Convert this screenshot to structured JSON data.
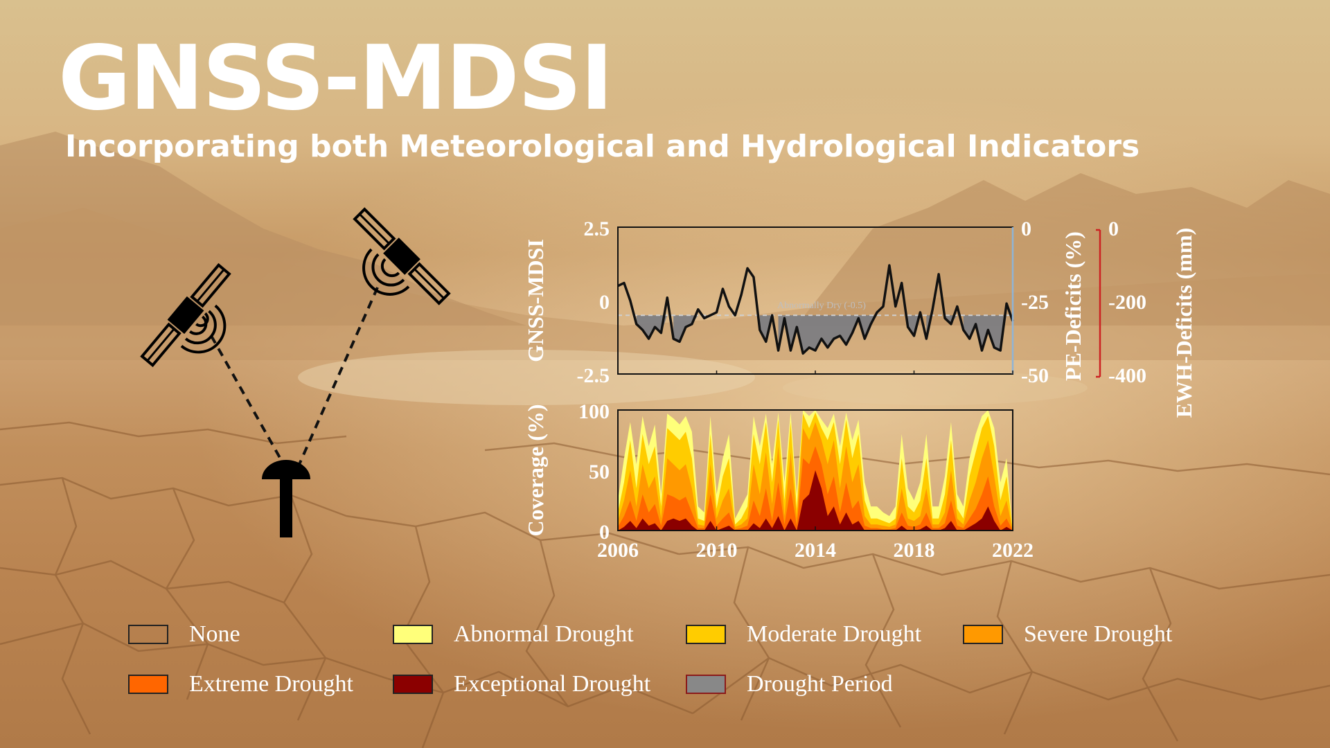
{
  "title": "GNSS-MDSI",
  "subtitle": "Incorporating both Meteorological and Hydrological Indicators",
  "chart_data": [
    {
      "type": "line",
      "ylabel": "GNSS-MDSI",
      "ylim": [
        -2.5,
        2.5
      ],
      "yticks": [
        "2.5",
        "0",
        "-2.5"
      ],
      "xlim": [
        2006,
        2022
      ],
      "threshold": {
        "value": -0.5,
        "label": "Abnormally Dry (-0.5)"
      },
      "right_axes": [
        {
          "label": "PE-Deficits (%)",
          "ticks": [
            "0",
            "-25",
            "-50"
          ],
          "color": "#8fb4d6"
        },
        {
          "label": "EWH-Deficits (mm)",
          "ticks": [
            "0",
            "-200",
            "-400"
          ],
          "color": "#cc2222"
        }
      ],
      "series": [
        {
          "x": [
            2006.0,
            2006.25,
            2006.5,
            2006.75,
            2007.0,
            2007.25,
            2007.5,
            2007.75,
            2008.0,
            2008.25,
            2008.5,
            2008.75,
            2009.0,
            2009.25,
            2009.5,
            2009.75,
            2010.0,
            2010.25,
            2010.5,
            2010.75,
            2011.0,
            2011.25,
            2011.5,
            2011.75,
            2012.0,
            2012.25,
            2012.5,
            2012.75,
            2013.0,
            2013.25,
            2013.5,
            2013.75,
            2014.0,
            2014.25,
            2014.5,
            2014.75,
            2015.0,
            2015.25,
            2015.5,
            2015.75,
            2016.0,
            2016.25,
            2016.5,
            2016.75,
            2017.0,
            2017.25,
            2017.5,
            2017.75,
            2018.0,
            2018.25,
            2018.5,
            2018.75,
            2019.0,
            2019.25,
            2019.5,
            2019.75,
            2020.0,
            2020.25,
            2020.5,
            2020.75,
            2021.0,
            2021.25,
            2021.5,
            2021.75,
            2022.0
          ],
          "y": [
            0.5,
            0.6,
            0.0,
            -0.8,
            -1.0,
            -1.3,
            -0.9,
            -1.1,
            0.1,
            -1.3,
            -1.4,
            -0.9,
            -0.8,
            -0.3,
            -0.6,
            -0.5,
            -0.4,
            0.4,
            -0.2,
            -0.5,
            0.2,
            1.1,
            0.8,
            -1.0,
            -1.4,
            -0.5,
            -1.7,
            -0.6,
            -1.7,
            -0.9,
            -1.8,
            -1.6,
            -1.7,
            -1.3,
            -1.6,
            -1.3,
            -1.2,
            -1.5,
            -1.1,
            -0.6,
            -1.3,
            -0.8,
            -0.4,
            -0.2,
            1.2,
            -0.2,
            0.6,
            -0.9,
            -1.2,
            -0.4,
            -1.3,
            -0.3,
            0.9,
            -0.6,
            -0.8,
            -0.2,
            -1.0,
            -1.3,
            -0.8,
            -1.7,
            -1.0,
            -1.6,
            -1.7,
            -0.1,
            -0.7
          ]
        }
      ]
    },
    {
      "type": "area",
      "ylabel": "Coverage (%)",
      "ylim": [
        0,
        100
      ],
      "yticks": [
        "100",
        "50",
        "0"
      ],
      "xlim": [
        2006,
        2022
      ],
      "xticks": [
        "2006",
        "2010",
        "2014",
        "2018",
        "2022"
      ],
      "x": [
        2006.0,
        2006.25,
        2006.5,
        2006.75,
        2007.0,
        2007.25,
        2007.5,
        2007.75,
        2008.0,
        2008.25,
        2008.5,
        2008.75,
        2009.0,
        2009.25,
        2009.5,
        2009.75,
        2010.0,
        2010.25,
        2010.5,
        2010.75,
        2011.0,
        2011.25,
        2011.5,
        2011.75,
        2012.0,
        2012.25,
        2012.5,
        2012.75,
        2013.0,
        2013.25,
        2013.5,
        2013.75,
        2014.0,
        2014.25,
        2014.5,
        2014.75,
        2015.0,
        2015.25,
        2015.5,
        2015.75,
        2016.0,
        2016.25,
        2016.5,
        2016.75,
        2017.0,
        2017.25,
        2017.5,
        2017.75,
        2018.0,
        2018.25,
        2018.5,
        2018.75,
        2019.0,
        2019.25,
        2019.5,
        2019.75,
        2020.0,
        2020.25,
        2020.5,
        2020.75,
        2021.0,
        2021.25,
        2021.5,
        2021.75,
        2022.0
      ],
      "series": [
        {
          "name": "Abnormal Drought",
          "color": "#ffff7a",
          "values": [
            25,
            60,
            90,
            55,
            95,
            70,
            88,
            30,
            97,
            93,
            88,
            95,
            82,
            20,
            15,
            95,
            30,
            60,
            80,
            10,
            20,
            30,
            95,
            70,
            97,
            55,
            98,
            40,
            98,
            30,
            100,
            95,
            100,
            92,
            85,
            97,
            70,
            98,
            75,
            92,
            40,
            20,
            20,
            15,
            12,
            20,
            80,
            35,
            25,
            40,
            80,
            20,
            20,
            45,
            90,
            30,
            20,
            60,
            80,
            95,
            100,
            85,
            40,
            60,
            0
          ]
        },
        {
          "name": "Moderate Drought",
          "color": "#ffcc00",
          "values": [
            15,
            40,
            75,
            35,
            80,
            55,
            70,
            20,
            85,
            80,
            75,
            82,
            60,
            10,
            8,
            80,
            18,
            45,
            60,
            5,
            10,
            20,
            80,
            55,
            90,
            40,
            92,
            25,
            90,
            18,
            97,
            85,
            98,
            85,
            75,
            90,
            55,
            92,
            60,
            80,
            25,
            10,
            10,
            8,
            6,
            10,
            60,
            20,
            15,
            25,
            60,
            10,
            10,
            30,
            75,
            18,
            10,
            45,
            65,
            85,
            95,
            70,
            25,
            45,
            0
          ]
        },
        {
          "name": "Severe Drought",
          "color": "#ff9900",
          "values": [
            8,
            25,
            50,
            20,
            55,
            35,
            45,
            10,
            60,
            55,
            50,
            55,
            35,
            5,
            4,
            55,
            10,
            25,
            35,
            3,
            5,
            10,
            55,
            30,
            65,
            22,
            70,
            12,
            65,
            10,
            85,
            75,
            90,
            75,
            55,
            75,
            35,
            70,
            40,
            55,
            12,
            5,
            5,
            4,
            3,
            5,
            35,
            10,
            8,
            12,
            35,
            5,
            5,
            15,
            50,
            10,
            5,
            25,
            40,
            60,
            75,
            45,
            12,
            25,
            0
          ]
        },
        {
          "name": "Extreme Drought",
          "color": "#ff6600",
          "values": [
            3,
            12,
            25,
            8,
            30,
            15,
            22,
            4,
            30,
            28,
            25,
            28,
            15,
            2,
            2,
            30,
            4,
            10,
            15,
            1,
            2,
            4,
            25,
            12,
            35,
            8,
            40,
            5,
            35,
            4,
            60,
            55,
            70,
            55,
            30,
            45,
            15,
            40,
            18,
            25,
            4,
            2,
            2,
            1,
            1,
            2,
            15,
            4,
            3,
            5,
            15,
            2,
            2,
            6,
            25,
            4,
            2,
            10,
            18,
            30,
            45,
            20,
            4,
            10,
            0
          ]
        },
        {
          "name": "Exceptional Drought",
          "color": "#8b0000",
          "values": [
            0,
            3,
            8,
            2,
            10,
            4,
            6,
            0,
            8,
            10,
            8,
            10,
            4,
            0,
            0,
            8,
            0,
            2,
            4,
            0,
            0,
            0,
            6,
            2,
            10,
            2,
            12,
            0,
            10,
            0,
            25,
            30,
            50,
            35,
            12,
            20,
            5,
            15,
            5,
            8,
            0,
            0,
            0,
            0,
            0,
            0,
            4,
            0,
            0,
            1,
            4,
            0,
            0,
            2,
            8,
            0,
            0,
            3,
            6,
            10,
            20,
            8,
            0,
            3,
            0
          ]
        }
      ]
    }
  ],
  "legend": [
    {
      "label": "None",
      "color": "transparent",
      "border": "#222222"
    },
    {
      "label": "Abnormal Drought",
      "color": "#ffff7a",
      "border": "#222222"
    },
    {
      "label": "Moderate Drought",
      "color": "#ffcc00",
      "border": "#222222"
    },
    {
      "label": "Severe Drought",
      "color": "#ff9900",
      "border": "#222222"
    },
    {
      "label": "Extreme Drought",
      "color": "#ff6600",
      "border": "#222222"
    },
    {
      "label": "Exceptional Drought",
      "color": "#8b0000",
      "border": "#222222"
    },
    {
      "label": "Drought Period",
      "color": "#888888",
      "border": "#8b1a1a"
    }
  ],
  "icons": [
    "satellite-icon",
    "satellite-icon",
    "gnss-antenna-icon"
  ]
}
